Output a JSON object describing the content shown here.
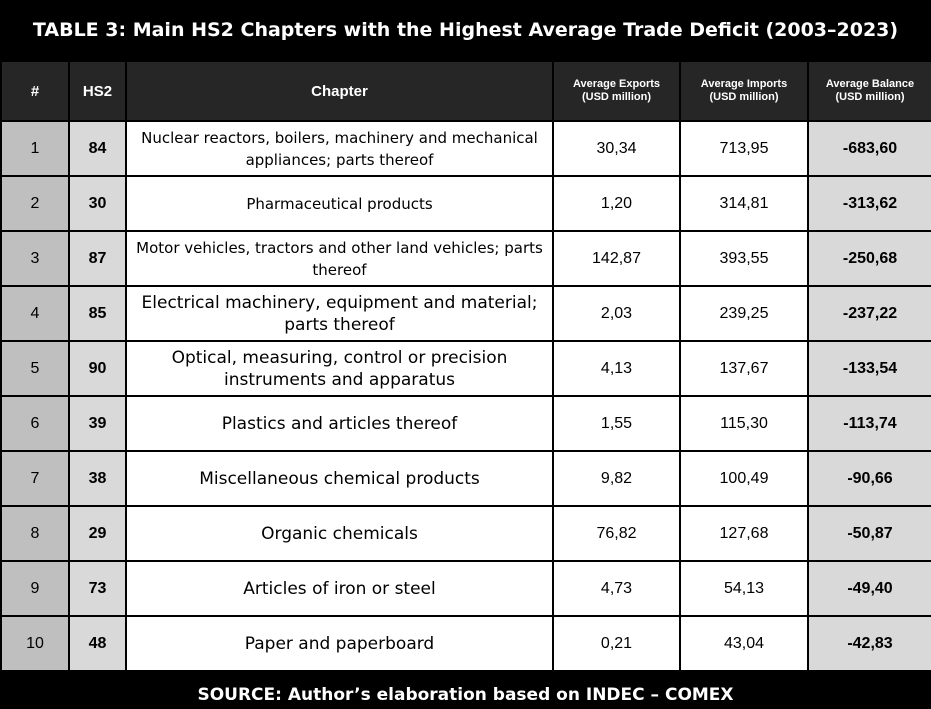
{
  "title": "TABLE 3: Main HS2 Chapters with the Highest Average Trade Deficit (2003–2023)",
  "headers": {
    "rank": "#",
    "hs2": "HS2",
    "chapter": "Chapter",
    "exports": "Average Exports",
    "exports_unit": "(USD million)",
    "imports": "Average Imports",
    "imports_unit": "(USD million)",
    "balance": "Average Balance",
    "balance_unit": "(USD million)"
  },
  "rows": [
    {
      "rank": "1",
      "hs2": "84",
      "chapter": "Nuclear reactors, boilers, machinery and mechanical appliances; parts thereof",
      "exports": "30,34",
      "imports": "713,95",
      "balance": "-683,60"
    },
    {
      "rank": "2",
      "hs2": "30",
      "chapter": "Pharmaceutical products",
      "exports": "1,20",
      "imports": "314,81",
      "balance": "-313,62"
    },
    {
      "rank": "3",
      "hs2": "87",
      "chapter": "Motor vehicles, tractors and other land vehicles; parts thereof",
      "exports": "142,87",
      "imports": "393,55",
      "balance": "-250,68"
    },
    {
      "rank": "4",
      "hs2": "85",
      "chapter": "Electrical machinery, equipment and material; parts thereof",
      "exports": "2,03",
      "imports": "239,25",
      "balance": "-237,22"
    },
    {
      "rank": "5",
      "hs2": "90",
      "chapter": "Optical, measuring, control or precision instruments and apparatus",
      "exports": "4,13",
      "imports": "137,67",
      "balance": "-133,54"
    },
    {
      "rank": "6",
      "hs2": "39",
      "chapter": "Plastics and articles thereof",
      "exports": "1,55",
      "imports": "115,30",
      "balance": "-113,74"
    },
    {
      "rank": "7",
      "hs2": "38",
      "chapter": "Miscellaneous chemical products",
      "exports": "9,82",
      "imports": "100,49",
      "balance": "-90,66"
    },
    {
      "rank": "8",
      "hs2": "29",
      "chapter": "Organic chemicals",
      "exports": "76,82",
      "imports": "127,68",
      "balance": "-50,87"
    },
    {
      "rank": "9",
      "hs2": "73",
      "chapter": "Articles of iron or steel",
      "exports": "4,73",
      "imports": "54,13",
      "balance": "-49,40"
    },
    {
      "rank": "10",
      "hs2": "48",
      "chapter": "Paper and paperboard",
      "exports": "0,21",
      "imports": "43,04",
      "balance": "-42,83"
    }
  ],
  "source": "SOURCE: Author’s elaboration based on INDEC – COMEX",
  "colors": {
    "background": "#000000",
    "header_bg": "#262626",
    "rank_bg": "#bfbfbf",
    "shaded_bg": "#d9d9d9",
    "cell_bg": "#ffffff"
  },
  "chart_data": {
    "type": "table",
    "title": "TABLE 3: Main HS2 Chapters with the Highest Average Trade Deficit (2003–2023)",
    "columns": [
      "#",
      "HS2",
      "Chapter",
      "Average Exports (USD million)",
      "Average Imports (USD million)",
      "Average Balance (USD million)"
    ],
    "rows": [
      [
        "1",
        "84",
        "Nuclear reactors, boilers, machinery and mechanical appliances; parts thereof",
        "30,34",
        "713,95",
        "-683,60"
      ],
      [
        "2",
        "30",
        "Pharmaceutical products",
        "1,20",
        "314,81",
        "-313,62"
      ],
      [
        "3",
        "87",
        "Motor vehicles, tractors and other land vehicles; parts thereof",
        "142,87",
        "393,55",
        "-250,68"
      ],
      [
        "4",
        "85",
        "Electrical machinery, equipment and material; parts thereof",
        "2,03",
        "239,25",
        "-237,22"
      ],
      [
        "5",
        "90",
        "Optical, measuring, control or precision instruments and apparatus",
        "4,13",
        "137,67",
        "-133,54"
      ],
      [
        "6",
        "39",
        "Plastics and articles thereof",
        "1,55",
        "115,30",
        "-113,74"
      ],
      [
        "7",
        "38",
        "Miscellaneous chemical products",
        "9,82",
        "100,49",
        "-90,66"
      ],
      [
        "8",
        "29",
        "Organic chemicals",
        "76,82",
        "127,68",
        "-50,87"
      ],
      [
        "9",
        "73",
        "Articles of iron or steel",
        "4,73",
        "54,13",
        "-49,40"
      ],
      [
        "10",
        "48",
        "Paper and paperboard",
        "0,21",
        "43,04",
        "-42,83"
      ]
    ],
    "source": "SOURCE: Author’s elaboration based on INDEC – COMEX"
  }
}
